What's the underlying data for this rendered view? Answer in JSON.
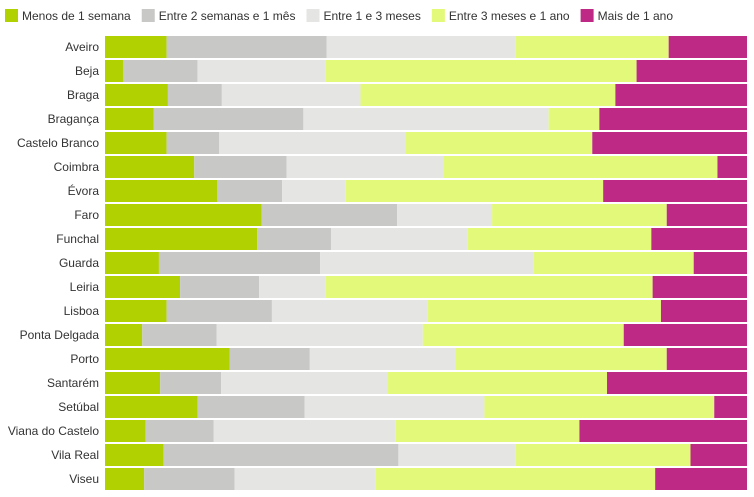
{
  "chart_data": {
    "type": "bar",
    "orientation": "horizontal",
    "stacking": "percent",
    "title": "",
    "xlabel": "",
    "ylabel": "",
    "xlim": [
      0,
      100
    ],
    "legend_position": "top-left",
    "categories": [
      "Aveiro",
      "Beja",
      "Braga",
      "Bragança",
      "Castelo Branco",
      "Coimbra",
      "Évora",
      "Faro",
      "Funchal",
      "Guarda",
      "Leiria",
      "Lisboa",
      "Ponta Delgada",
      "Porto",
      "Santarém",
      "Setúbal",
      "Viana do Castelo",
      "Vila Real",
      "Viseu"
    ],
    "series": [
      {
        "name": "Menos de 1 semana",
        "color": "#b2d100",
        "values": [
          9.6,
          2.8,
          9.8,
          7.6,
          9.6,
          13.9,
          17.5,
          24.4,
          23.7,
          8.4,
          11.7,
          9.6,
          5.8,
          19.4,
          8.6,
          14.4,
          6.3,
          9.1,
          6.1
        ]
      },
      {
        "name": "Entre 2 semanas e 1 mês",
        "color": "#c8c8c6",
        "values": [
          24.9,
          11.6,
          8.4,
          23.3,
          8.2,
          14.4,
          10.1,
          21.1,
          11.5,
          25.1,
          12.3,
          16.4,
          11.6,
          12.5,
          9.5,
          16.7,
          10.6,
          36.6,
          14.1
        ]
      },
      {
        "name": "Entre 1 e 3 meses",
        "color": "#e5e5e3",
        "values": [
          29.5,
          19.9,
          21.6,
          38.2,
          29.0,
          24.5,
          9.9,
          14.8,
          21.2,
          33.3,
          10.4,
          24.2,
          32.1,
          22.7,
          25.9,
          28.0,
          28.4,
          18.3,
          21.9
        ]
      },
      {
        "name": "Entre 3 meses e 1 ano",
        "color": "#e3f97a",
        "values": [
          23.8,
          48.5,
          39.7,
          7.9,
          29.1,
          42.6,
          40.1,
          27.2,
          28.7,
          24.9,
          50.9,
          36.4,
          31.3,
          32.9,
          34.2,
          35.8,
          28.6,
          27.2,
          43.6
        ]
      },
      {
        "name": "Mais de 1 ano",
        "color": "#bd2985",
        "values": [
          12.2,
          17.2,
          20.5,
          23.0,
          24.1,
          4.6,
          22.4,
          12.5,
          14.9,
          8.3,
          14.7,
          13.4,
          19.2,
          12.5,
          21.8,
          5.1,
          26.1,
          8.8,
          14.3
        ]
      }
    ]
  }
}
